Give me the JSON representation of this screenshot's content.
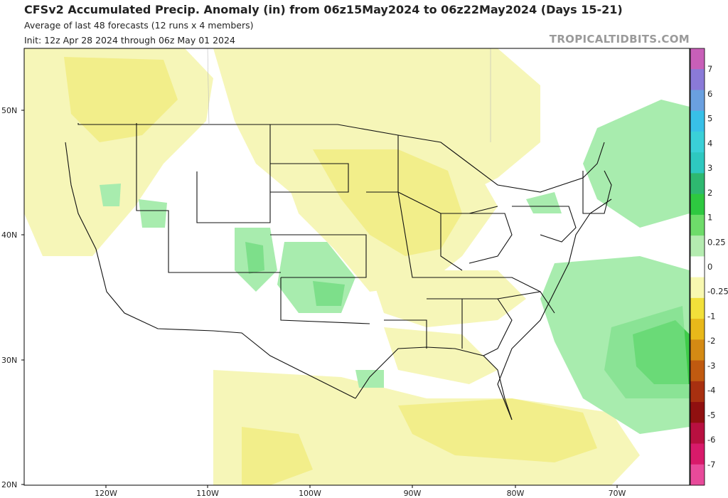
{
  "header": {
    "title": "CFSv2 Accumulated Precip. Anomaly (in) from 06z15May2024 to 06z22May2024 (Days 15-21)",
    "subtitle1": "Average of last 48 forecasts (12 runs x 4 members)",
    "subtitle2": "Init: 12z Apr 28 2024 through 06z May 01 2024",
    "watermark": "TROPICALTIDBITS.COM"
  },
  "map": {
    "lat_labels": [
      "50N",
      "40N",
      "30N",
      "20N"
    ],
    "lon_labels": [
      "120W",
      "110W",
      "100W",
      "90W",
      "80W",
      "70W"
    ],
    "colors": {
      "dry_light": "#f6f6b8",
      "dry_mid": "#f2ee8a",
      "dry_strong": "#ecd95a",
      "wet_light": "#a8ecae",
      "wet_mid": "#7ddf8a",
      "wet_strong": "#3fcc4a",
      "border": "#111111"
    }
  },
  "colorbar": {
    "labels": [
      "7",
      "6",
      "5",
      "4",
      "3",
      "2",
      "1",
      "0.25",
      "0",
      "-0.25",
      "-1",
      "-2",
      "-3",
      "-4",
      "-5",
      "-6",
      "-7"
    ],
    "colors": [
      "#c85fb8",
      "#8a7ad8",
      "#6aa0e0",
      "#38c0e8",
      "#3ad0d8",
      "#2ec8c0",
      "#2eb870",
      "#2ec840",
      "#6edc6a",
      "#b4ecb0",
      "#ffffff",
      "#f8f8b0",
      "#f2e03a",
      "#e8b81a",
      "#d48a14",
      "#c05a10",
      "#a83010",
      "#901010",
      "#b81040",
      "#d81a6a",
      "#e84a9a"
    ]
  }
}
